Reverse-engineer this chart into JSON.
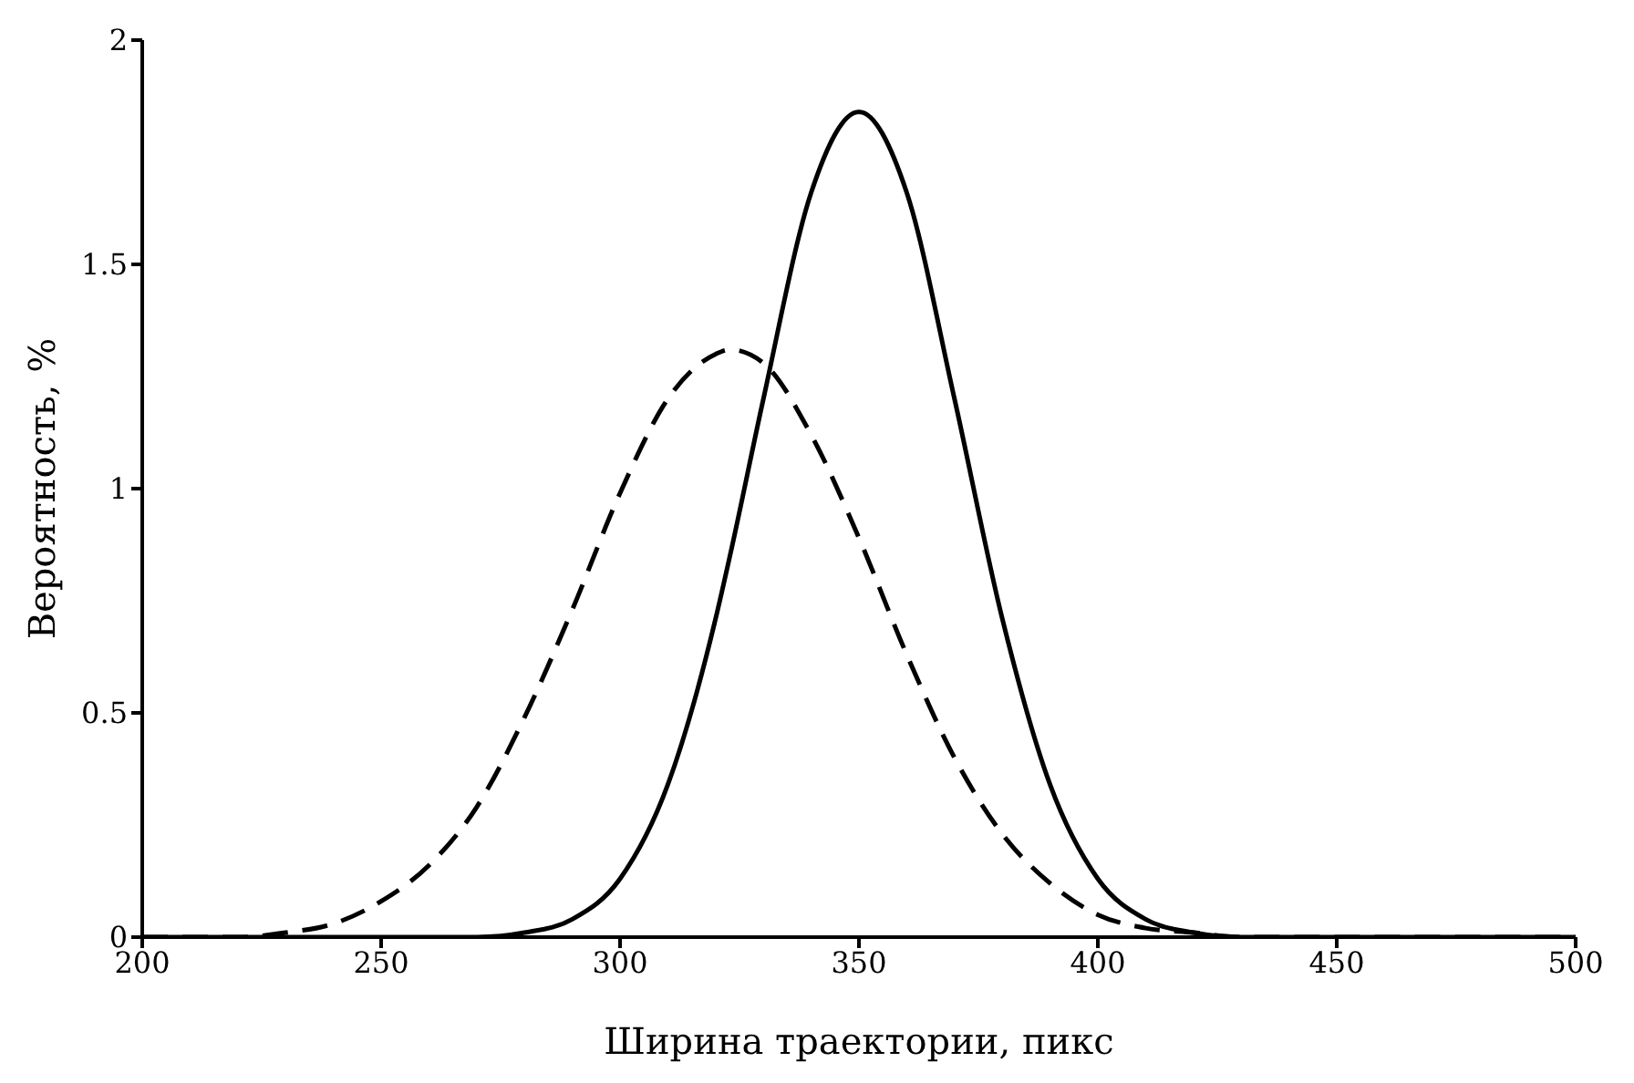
{
  "chart_data": {
    "type": "line",
    "xlabel": "Ширина траектории, пикс",
    "ylabel": "Вероятность, %",
    "x": [
      200,
      210,
      220,
      230,
      240,
      250,
      260,
      270,
      280,
      290,
      300,
      310,
      320,
      323,
      330,
      340,
      350,
      360,
      370,
      380,
      390,
      400,
      410,
      420,
      430,
      440,
      450,
      460,
      470,
      480,
      490,
      500
    ],
    "series": [
      {
        "color": "#000000",
        "line_style": "solid",
        "values": [
          0,
          0,
          0,
          0,
          0,
          0,
          0,
          0,
          0.01,
          0.04,
          0.13,
          0.34,
          0.71,
          0.85,
          1.2,
          1.66,
          1.84,
          1.66,
          1.2,
          0.71,
          0.34,
          0.13,
          0.04,
          0.01,
          0,
          0,
          0,
          0,
          0,
          0,
          0,
          0
        ]
      },
      {
        "color": "#000000",
        "line_style": "dashed",
        "values": [
          0,
          0,
          0,
          0.01,
          0.03,
          0.08,
          0.16,
          0.29,
          0.49,
          0.73,
          0.99,
          1.2,
          1.3,
          1.31,
          1.28,
          1.12,
          0.89,
          0.63,
          0.4,
          0.23,
          0.12,
          0.05,
          0.02,
          0.01,
          0,
          0,
          0,
          0,
          0,
          0,
          0,
          0
        ]
      }
    ],
    "xlim": [
      200,
      500
    ],
    "xticks": [
      200,
      250,
      300,
      350,
      400,
      450,
      500
    ],
    "ylim": [
      0,
      2
    ],
    "yticks": [
      0,
      0.5,
      1,
      1.5,
      2
    ],
    "grid": false,
    "legend": false,
    "marker": "none"
  }
}
